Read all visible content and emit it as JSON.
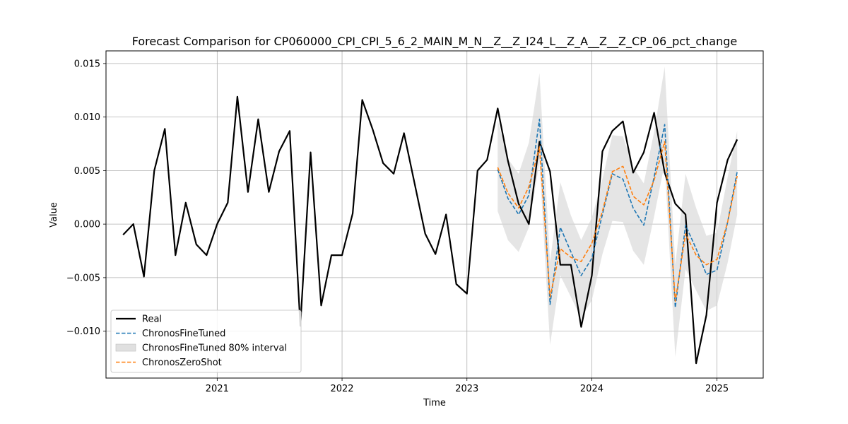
{
  "chart_data": {
    "type": "line",
    "title": "Forecast Comparison for CP060000_CPI_CPI_5_6_2_MAIN_M_N__Z__Z_I24_L__Z_A__Z__Z_CP_06_pct_change",
    "xlabel": "Time",
    "ylabel": "Value",
    "xlim": [
      "2020-02-11",
      "2025-05-16"
    ],
    "ylim": [
      -0.01438,
      0.01618
    ],
    "x_ticks": [
      "2021",
      "2022",
      "2023",
      "2024",
      "2025"
    ],
    "y_ticks": [
      "0.015",
      "0.010",
      "0.005",
      "0.000",
      "−0.005",
      "−0.010"
    ],
    "y_tick_values": [
      0.015,
      0.01,
      0.005,
      0.0,
      -0.005,
      -0.01
    ],
    "grid": true,
    "legend_position": "lower-left",
    "colors": {
      "real": "#000000",
      "finetuned": "#1f77b4",
      "zeroshot": "#ff7f0e",
      "interval": "#d3d3d3"
    },
    "series": [
      {
        "name": "Real",
        "style": "solid",
        "x": [
          "2020-04",
          "2020-05",
          "2020-06",
          "2020-07",
          "2020-08",
          "2020-09",
          "2020-10",
          "2020-11",
          "2020-12",
          "2021-01",
          "2021-02",
          "2021-03",
          "2021-04",
          "2021-05",
          "2021-06",
          "2021-07",
          "2021-08",
          "2021-09",
          "2021-10",
          "2021-11",
          "2021-12",
          "2022-01",
          "2022-02",
          "2022-03",
          "2022-04",
          "2022-05",
          "2022-06",
          "2022-07",
          "2022-08",
          "2022-09",
          "2022-10",
          "2022-11",
          "2022-12",
          "2023-01",
          "2023-02",
          "2023-03",
          "2023-04",
          "2023-05",
          "2023-06",
          "2023-07",
          "2023-08",
          "2023-09",
          "2023-10",
          "2023-11",
          "2023-12",
          "2024-01",
          "2024-02",
          "2024-03",
          "2024-04",
          "2024-05",
          "2024-06",
          "2024-07",
          "2024-08",
          "2024-09",
          "2024-10",
          "2024-11",
          "2024-12",
          "2025-01",
          "2025-02",
          "2025-03"
        ],
        "values": [
          -0.001,
          0.0,
          -0.0049,
          0.005,
          0.0089,
          -0.0029,
          0.002,
          -0.0019,
          -0.0029,
          0.0,
          0.002,
          0.0119,
          0.003,
          0.0098,
          0.003,
          0.0068,
          0.0087,
          -0.0095,
          0.0067,
          -0.0076,
          -0.0029,
          -0.0029,
          0.001,
          0.0116,
          0.0088,
          0.0057,
          0.0047,
          0.0085,
          0.0038,
          -0.0009,
          -0.0028,
          0.0009,
          -0.0056,
          -0.0065,
          0.005,
          0.006,
          0.0108,
          0.0059,
          0.0019,
          0.0,
          0.0077,
          0.0049,
          -0.0038,
          -0.0038,
          -0.0096,
          -0.0048,
          0.0068,
          0.0087,
          0.0096,
          0.0048,
          0.0067,
          0.0104,
          0.0048,
          0.0019,
          0.0009,
          -0.013,
          -0.0085,
          0.002,
          0.006,
          0.0079
        ]
      },
      {
        "name": "ChronosFineTuned",
        "style": "dashed",
        "x": [
          "2023-04",
          "2023-05",
          "2023-06",
          "2023-07",
          "2023-08",
          "2023-09",
          "2023-10",
          "2023-11",
          "2023-12",
          "2024-01",
          "2024-02",
          "2024-03",
          "2024-04",
          "2024-05",
          "2024-06",
          "2024-07",
          "2024-08",
          "2024-09",
          "2024-10",
          "2024-11",
          "2024-12",
          "2025-01",
          "2025-02",
          "2025-03"
        ],
        "values": [
          0.0051,
          0.0024,
          0.0009,
          0.0027,
          0.0098,
          -0.0075,
          -0.0003,
          -0.0026,
          -0.0048,
          -0.0032,
          0.0009,
          0.0047,
          0.0042,
          0.0015,
          -0.0001,
          0.0044,
          0.0093,
          -0.0078,
          -0.0001,
          -0.0023,
          -0.0047,
          -0.0043,
          0.0002,
          0.0049
        ]
      },
      {
        "name": "ChronosZeroShot",
        "style": "dashed",
        "x": [
          "2023-04",
          "2023-05",
          "2023-06",
          "2023-07",
          "2023-08",
          "2023-09",
          "2023-10",
          "2023-11",
          "2023-12",
          "2024-01",
          "2024-02",
          "2024-03",
          "2024-04",
          "2024-05",
          "2024-06",
          "2024-07",
          "2024-08",
          "2024-09",
          "2024-10",
          "2024-11",
          "2024-12",
          "2025-01",
          "2025-02",
          "2025-03"
        ],
        "values": [
          0.0053,
          0.0029,
          0.0015,
          0.0035,
          0.0072,
          -0.0068,
          -0.0023,
          -0.0031,
          -0.0035,
          -0.0018,
          0.0012,
          0.0049,
          0.0054,
          0.0026,
          0.0018,
          0.0041,
          0.0077,
          -0.0072,
          -0.0009,
          -0.0029,
          -0.0038,
          -0.0033,
          0.0002,
          0.0045
        ]
      }
    ],
    "interval": {
      "name": "ChronosFineTuned 80% interval",
      "x": [
        "2023-04",
        "2023-05",
        "2023-06",
        "2023-07",
        "2023-08",
        "2023-09",
        "2023-10",
        "2023-11",
        "2023-12",
        "2024-01",
        "2024-02",
        "2024-03",
        "2024-04",
        "2024-05",
        "2024-06",
        "2024-07",
        "2024-08",
        "2024-09",
        "2024-10",
        "2024-11",
        "2024-12",
        "2025-01",
        "2025-02",
        "2025-03"
      ],
      "upper": [
        0.0097,
        0.0061,
        0.0047,
        0.0076,
        0.0141,
        -0.0035,
        0.0039,
        0.0008,
        -0.0015,
        0.0006,
        0.0042,
        0.0083,
        0.0082,
        0.0053,
        0.0038,
        0.0086,
        0.0147,
        -0.0038,
        0.0047,
        0.0015,
        -0.0011,
        -0.0008,
        0.0044,
        0.0087
      ],
      "lower": [
        0.0012,
        -0.0015,
        -0.0026,
        -0.0003,
        0.0058,
        -0.0113,
        -0.0048,
        -0.0068,
        -0.0088,
        -0.0071,
        -0.0028,
        0.0003,
        0.0002,
        -0.0025,
        -0.0038,
        0.0007,
        0.0057,
        -0.0124,
        -0.0042,
        -0.0062,
        -0.0081,
        -0.0076,
        -0.0036,
        0.0009
      ]
    }
  },
  "legend": {
    "items": [
      {
        "label": "Real",
        "type": "line",
        "color": "#000000",
        "dash": false
      },
      {
        "label": "ChronosFineTuned",
        "type": "line",
        "color": "#1f77b4",
        "dash": true
      },
      {
        "label": "ChronosFineTuned 80% interval",
        "type": "patch",
        "color": "#d3d3d3"
      },
      {
        "label": "ChronosZeroShot",
        "type": "line",
        "color": "#ff7f0e",
        "dash": true
      }
    ]
  }
}
